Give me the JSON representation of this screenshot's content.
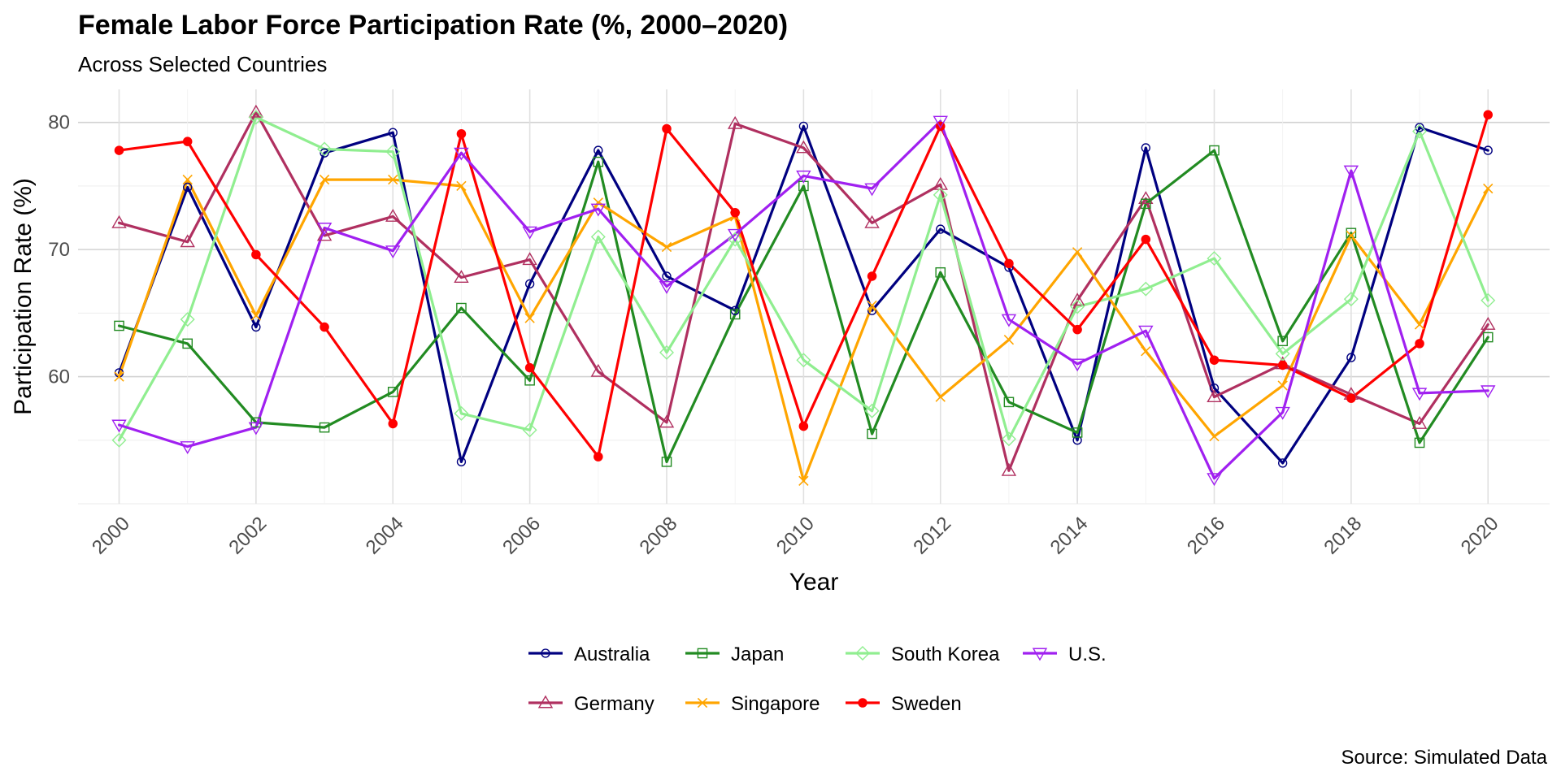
{
  "chart_data": {
    "type": "line",
    "title": "Female Labor Force Participation Rate (%, 2000–2020)",
    "subtitle": "Across Selected Countries",
    "xlabel": "Year",
    "ylabel": "Participation Rate (%)",
    "caption": "Source: Simulated Data",
    "x": [
      2000,
      2001,
      2002,
      2003,
      2004,
      2005,
      2006,
      2007,
      2008,
      2009,
      2010,
      2011,
      2012,
      2013,
      2014,
      2015,
      2016,
      2017,
      2018,
      2019,
      2020
    ],
    "x_ticks": [
      "2000",
      "2002",
      "2004",
      "2006",
      "2008",
      "2010",
      "2012",
      "2014",
      "2016",
      "2018",
      "2020"
    ],
    "y_ticks": [
      "60",
      "70",
      "80"
    ],
    "xlim": [
      1999.4,
      2020.9
    ],
    "ylim": [
      50,
      82.6
    ],
    "grid": true,
    "legend_position": "bottom",
    "series": [
      {
        "name": "Australia",
        "color": "#000080",
        "marker": "circle",
        "values": [
          60.3,
          74.9,
          63.9,
          77.6,
          79.2,
          53.3,
          67.3,
          77.8,
          67.9,
          65.2,
          79.7,
          65.2,
          71.6,
          68.6,
          55.0,
          78.0,
          59.1,
          53.2,
          61.5,
          79.6,
          77.8
        ]
      },
      {
        "name": "Germany",
        "color": "#b03060",
        "marker": "triangle",
        "values": [
          72.1,
          70.6,
          80.8,
          71.1,
          72.6,
          67.8,
          69.2,
          60.4,
          56.4,
          79.9,
          78.0,
          72.1,
          75.1,
          52.6,
          66.0,
          74.0,
          58.4,
          61.0,
          58.6,
          56.3,
          64.1
        ]
      },
      {
        "name": "Japan",
        "color": "#228b22",
        "marker": "square",
        "values": [
          64.0,
          62.6,
          56.4,
          56.0,
          58.8,
          65.4,
          59.7,
          76.9,
          53.3,
          64.9,
          75.0,
          55.5,
          68.2,
          58.0,
          55.6,
          73.6,
          77.8,
          62.8,
          71.3,
          54.8,
          63.1
        ]
      },
      {
        "name": "Singapore",
        "color": "#ffa500",
        "marker": "x",
        "values": [
          60.0,
          75.5,
          64.8,
          75.5,
          75.5,
          75.0,
          64.6,
          73.7,
          70.2,
          72.6,
          51.8,
          65.6,
          58.4,
          62.9,
          69.8,
          62.0,
          55.3,
          59.3,
          71.1,
          64.1,
          74.8
        ]
      },
      {
        "name": "South Korea",
        "color": "#90ee90",
        "marker": "diamond",
        "values": [
          55.0,
          64.5,
          80.4,
          77.9,
          77.7,
          57.1,
          55.8,
          71.0,
          61.9,
          70.8,
          61.3,
          57.3,
          74.3,
          55.1,
          65.5,
          66.9,
          69.3,
          61.8,
          66.1,
          79.3,
          66.0
        ]
      },
      {
        "name": "Sweden",
        "color": "#ff0000",
        "marker": "dot",
        "values": [
          77.8,
          78.5,
          69.6,
          63.9,
          56.3,
          79.1,
          60.7,
          53.7,
          79.5,
          72.9,
          56.1,
          67.9,
          79.7,
          68.9,
          63.7,
          70.8,
          61.3,
          60.9,
          58.3,
          62.6,
          80.6
        ]
      },
      {
        "name": "U.S.",
        "color": "#a020f0",
        "marker": "triangle-down",
        "values": [
          56.2,
          54.5,
          56.0,
          71.7,
          69.9,
          77.6,
          71.4,
          73.2,
          67.1,
          71.2,
          75.8,
          74.8,
          80.1,
          64.5,
          61.0,
          63.6,
          52.0,
          57.2,
          76.2,
          58.7,
          58.9
        ]
      }
    ],
    "legend_order": [
      "Australia",
      "Japan",
      "South Korea",
      "U.S.",
      "Germany",
      "Singapore",
      "Sweden"
    ]
  }
}
